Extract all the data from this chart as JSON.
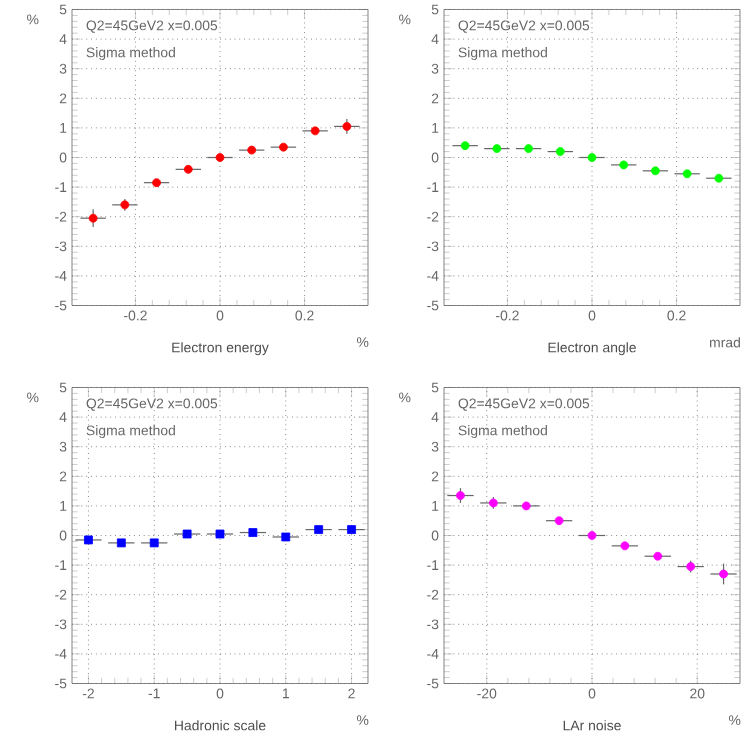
{
  "chart_data": [
    {
      "type": "scatter",
      "xlabel": "Electron energy",
      "ylabel": "%",
      "annotations": [
        "Q2=45GeV2  x=0.005",
        "Sigma method",
        "%"
      ],
      "marker": "circle",
      "grid": true,
      "xlim": [
        -0.35,
        0.35
      ],
      "xticks": [
        -0.2,
        0,
        0.2
      ],
      "ylim": [
        -5,
        5
      ],
      "yticks": [
        -5,
        -4,
        -3,
        -2,
        -1,
        0,
        1,
        2,
        3,
        4,
        5
      ],
      "series": [
        {
          "color": "#ff0000",
          "x": [
            -0.3,
            -0.225,
            -0.15,
            -0.075,
            0,
            0.075,
            0.15,
            0.225,
            0.3
          ],
          "values": [
            -2.05,
            -1.6,
            -0.85,
            -0.4,
            0,
            0.25,
            0.35,
            0.9,
            1.05
          ],
          "errors": [
            0.3,
            0.2,
            null,
            null,
            null,
            null,
            null,
            null,
            0.25
          ],
          "xerrors": [
            0.03,
            0.03,
            0.03,
            0.03,
            0.03,
            0.03,
            0.03,
            0.03,
            0.03
          ]
        }
      ]
    },
    {
      "type": "scatter",
      "xlabel": "Electron angle",
      "ylabel": "%",
      "annotations": [
        "Q2=45GeV2  x=0.005",
        "Sigma method",
        "mrad"
      ],
      "marker": "circle",
      "grid": true,
      "xlim": [
        -0.35,
        0.35
      ],
      "xticks": [
        -0.2,
        0,
        0.2
      ],
      "ylim": [
        -5,
        5
      ],
      "yticks": [
        -5,
        -4,
        -3,
        -2,
        -1,
        0,
        1,
        2,
        3,
        4,
        5
      ],
      "series": [
        {
          "color": "#00ff00",
          "x": [
            -0.3,
            -0.225,
            -0.15,
            -0.075,
            0,
            0.075,
            0.15,
            0.225,
            0.3
          ],
          "values": [
            0.4,
            0.3,
            0.3,
            0.2,
            0,
            -0.25,
            -0.45,
            -0.55,
            -0.7
          ],
          "xerrors": [
            0.03,
            0.03,
            0.03,
            0.03,
            0.03,
            0.03,
            0.03,
            0.03,
            0.03
          ]
        }
      ]
    },
    {
      "type": "scatter",
      "xlabel": "Hadronic scale",
      "ylabel": "%",
      "annotations": [
        "Q2=45GeV2  x=0.005",
        "Sigma method",
        "%"
      ],
      "marker": "square",
      "grid": true,
      "xlim": [
        -2.25,
        2.25
      ],
      "xticks": [
        -2,
        -1,
        0,
        1,
        2
      ],
      "ylim": [
        -5,
        5
      ],
      "yticks": [
        -5,
        -4,
        -3,
        -2,
        -1,
        0,
        1,
        2,
        3,
        4,
        5
      ],
      "series": [
        {
          "color": "#0000ff",
          "x": [
            -2,
            -1.5,
            -1,
            -0.5,
            0,
            0.5,
            1,
            1.5,
            2
          ],
          "values": [
            -0.15,
            -0.25,
            -0.25,
            0.05,
            0.05,
            0.1,
            -0.05,
            0.2,
            0.2
          ],
          "xerrors": [
            0.2,
            0.2,
            0.2,
            0.2,
            0.2,
            0.2,
            0.2,
            0.2,
            0.2
          ]
        }
      ]
    },
    {
      "type": "scatter",
      "xlabel": "LAr noise",
      "ylabel": "%",
      "annotations": [
        "Q2=45GeV2  x=0.005",
        "Sigma method",
        "%"
      ],
      "marker": "circle",
      "grid": true,
      "xlim": [
        -28.125,
        28.125
      ],
      "xticks": [
        -20,
        0,
        20
      ],
      "ylim": [
        -5,
        5
      ],
      "yticks": [
        -5,
        -4,
        -3,
        -2,
        -1,
        0,
        1,
        2,
        3,
        4,
        5
      ],
      "series": [
        {
          "color": "#ff00ff",
          "x": [
            -25,
            -18.75,
            -12.5,
            -6.25,
            0,
            6.25,
            12.5,
            18.75,
            25
          ],
          "values": [
            1.35,
            1.1,
            1.0,
            0.5,
            0,
            -0.35,
            -0.7,
            -1.05,
            -1.3
          ],
          "errors": [
            0.25,
            0.2,
            null,
            null,
            null,
            null,
            null,
            0.2,
            0.35
          ],
          "xerrors": [
            2.5,
            2.5,
            2.5,
            2.5,
            2.5,
            2.5,
            2.5,
            2.5,
            2.5
          ]
        }
      ]
    }
  ]
}
